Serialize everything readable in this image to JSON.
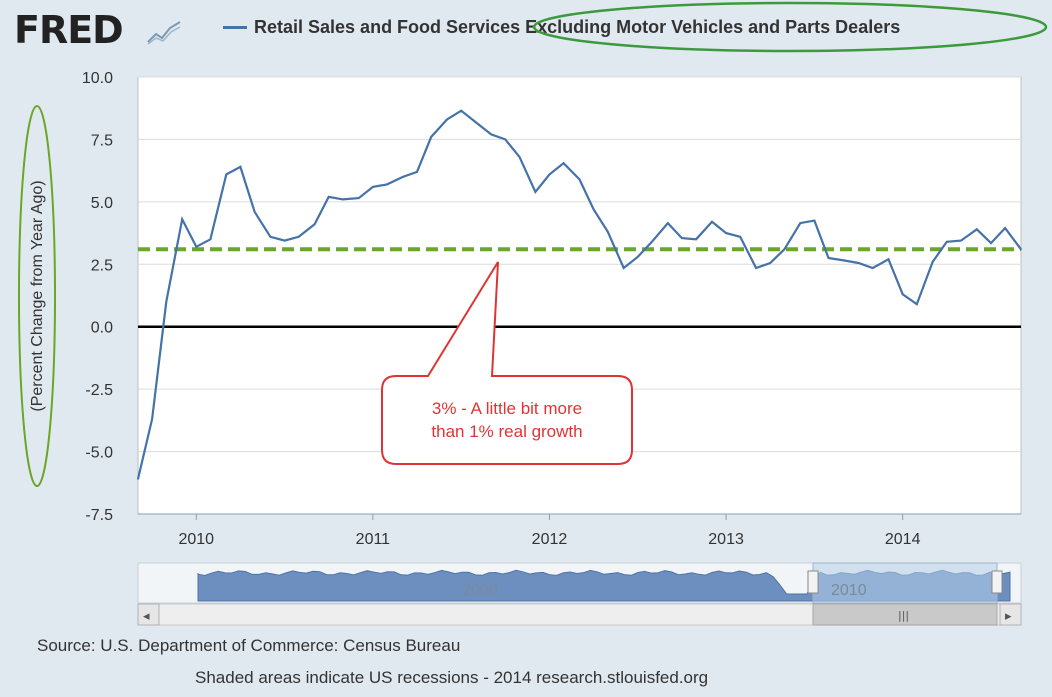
{
  "header": {
    "logo_text": "FRED",
    "legend_label": "Retail Sales and Food Services Excluding Motor Vehicles and Parts Dealers",
    "series_color": "#4572a7"
  },
  "callout": {
    "line1": "3% - A little bit more",
    "line2": "than 1% real growth",
    "color": "#e03434"
  },
  "footer": {
    "source": "Source: U.S. Department of Commerce: Census Bureau",
    "note": "Shaded areas indicate US recessions - 2014 research.stlouisfed.org"
  },
  "navigator": {
    "labels": [
      "2000",
      "2010"
    ],
    "handle_glyph": "|||",
    "left_arrow": "◂",
    "right_arrow": "▸"
  },
  "chart_data": {
    "type": "line",
    "title": "Retail Sales and Food Services Excluding Motor Vehicles and Parts Dealers",
    "ylabel": "(Percent Change from Year Ago)",
    "xlabel": "",
    "ylim": [
      -7.5,
      10.0
    ],
    "xlim": [
      2009.67,
      2014.67
    ],
    "yticks": [
      "10.0",
      "7.5",
      "5.0",
      "2.5",
      "0.0",
      "-2.5",
      "-5.0",
      "-7.5"
    ],
    "xticks": [
      "2010",
      "2011",
      "2012",
      "2013",
      "2014"
    ],
    "reference_lines": [
      {
        "name": "zero",
        "value": 0.0,
        "color": "#000000"
      },
      {
        "name": "3 percent trend",
        "value": 3.1,
        "color": "#6aa627",
        "style": "dashed"
      }
    ],
    "series": [
      {
        "name": "Retail Sales and Food Services Excluding Motor Vehicles and Parts Dealers",
        "color": "#4572a7",
        "points": [
          [
            2009.67,
            -6.1
          ],
          [
            2009.75,
            -3.7
          ],
          [
            2009.83,
            1.0
          ],
          [
            2009.92,
            4.3
          ],
          [
            2010.0,
            3.2
          ],
          [
            2010.08,
            3.5
          ],
          [
            2010.17,
            6.1
          ],
          [
            2010.25,
            6.4
          ],
          [
            2010.33,
            4.6
          ],
          [
            2010.42,
            3.6
          ],
          [
            2010.5,
            3.45
          ],
          [
            2010.58,
            3.6
          ],
          [
            2010.67,
            4.1
          ],
          [
            2010.75,
            5.2
          ],
          [
            2010.83,
            5.1
          ],
          [
            2010.92,
            5.15
          ],
          [
            2011.0,
            5.6
          ],
          [
            2011.08,
            5.7
          ],
          [
            2011.17,
            6.0
          ],
          [
            2011.25,
            6.2
          ],
          [
            2011.33,
            7.6
          ],
          [
            2011.42,
            8.3
          ],
          [
            2011.5,
            8.65
          ],
          [
            2011.58,
            8.2
          ],
          [
            2011.67,
            7.7
          ],
          [
            2011.75,
            7.5
          ],
          [
            2011.83,
            6.8
          ],
          [
            2011.92,
            5.4
          ],
          [
            2012.0,
            6.1
          ],
          [
            2012.08,
            6.55
          ],
          [
            2012.17,
            5.9
          ],
          [
            2012.25,
            4.7
          ],
          [
            2012.33,
            3.8
          ],
          [
            2012.42,
            2.35
          ],
          [
            2012.5,
            2.8
          ],
          [
            2012.58,
            3.4
          ],
          [
            2012.67,
            4.15
          ],
          [
            2012.75,
            3.55
          ],
          [
            2012.83,
            3.5
          ],
          [
            2012.92,
            4.2
          ],
          [
            2013.0,
            3.75
          ],
          [
            2013.08,
            3.6
          ],
          [
            2013.17,
            2.35
          ],
          [
            2013.25,
            2.55
          ],
          [
            2013.33,
            3.1
          ],
          [
            2013.42,
            4.15
          ],
          [
            2013.5,
            4.25
          ],
          [
            2013.58,
            2.75
          ],
          [
            2013.67,
            2.65
          ],
          [
            2013.75,
            2.55
          ],
          [
            2013.83,
            2.35
          ],
          [
            2013.92,
            2.7
          ],
          [
            2014.0,
            1.3
          ],
          [
            2014.08,
            0.9
          ],
          [
            2014.17,
            2.6
          ],
          [
            2014.25,
            3.4
          ],
          [
            2014.33,
            3.45
          ],
          [
            2014.42,
            3.9
          ],
          [
            2014.5,
            3.35
          ],
          [
            2014.58,
            3.95
          ],
          [
            2014.67,
            3.1
          ]
        ]
      }
    ]
  }
}
